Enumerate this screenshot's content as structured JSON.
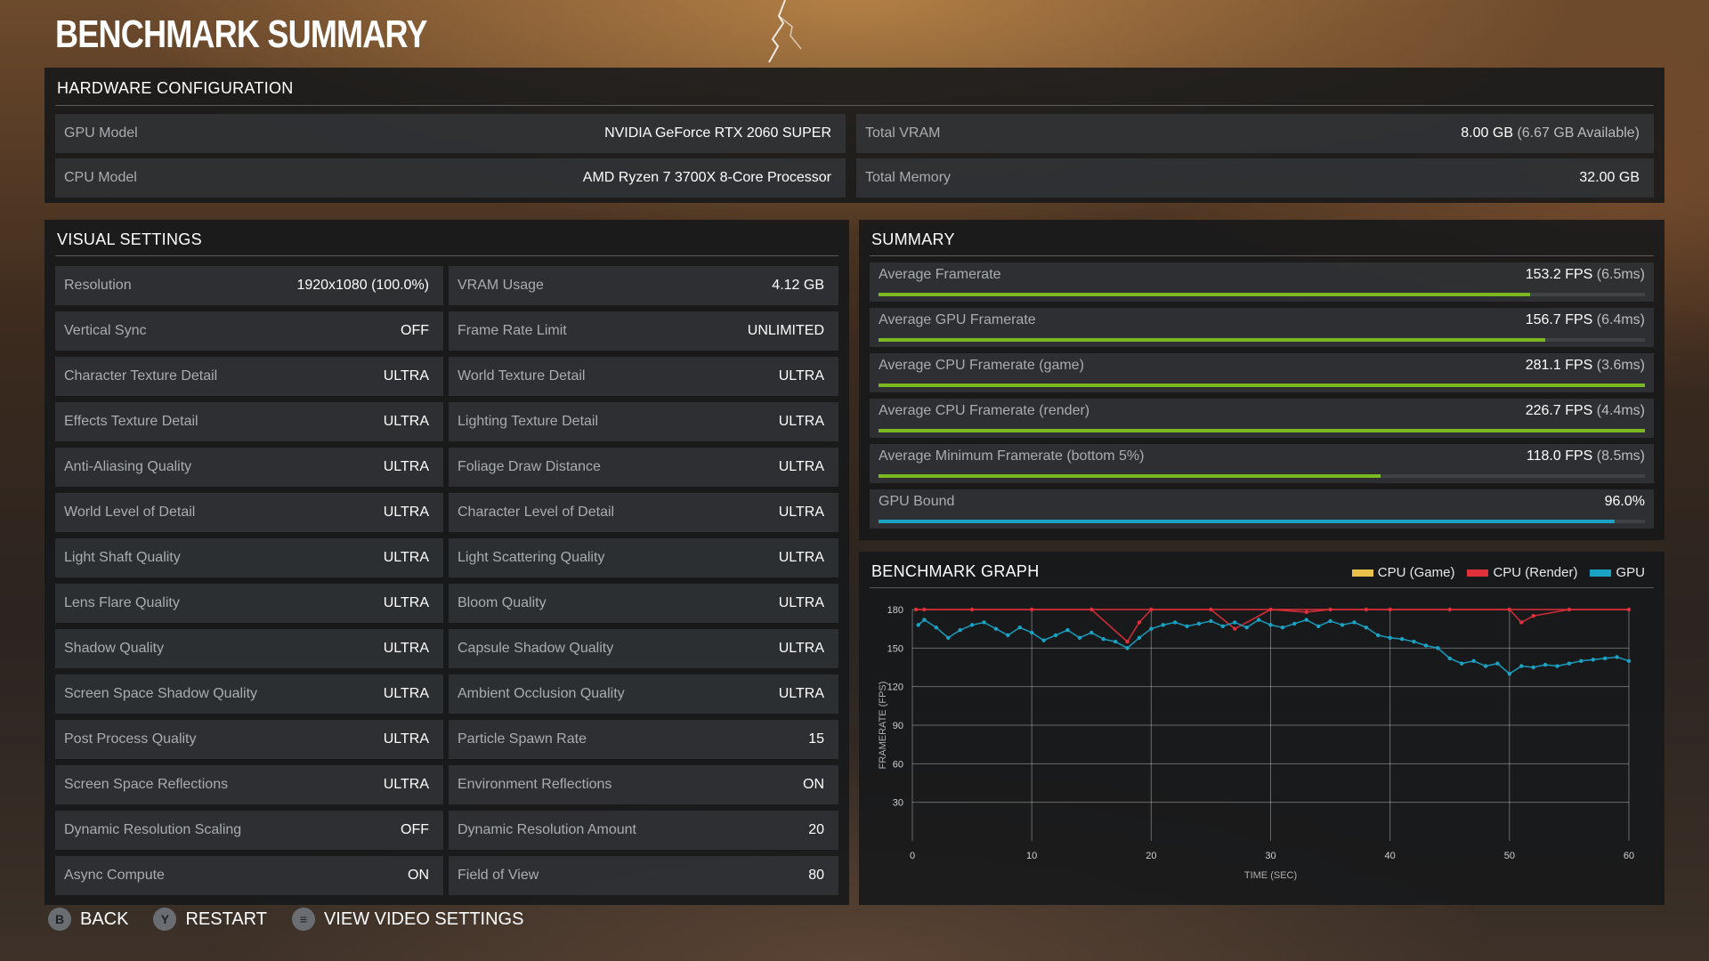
{
  "title": "BENCHMARK SUMMARY",
  "hardware": {
    "heading": "HARDWARE CONFIGURATION",
    "rows": [
      {
        "label": "GPU Model",
        "value": "NVIDIA GeForce RTX 2060 SUPER"
      },
      {
        "label": "Total VRAM",
        "value": "8.00 GB",
        "sub": "(6.67 GB Available)"
      },
      {
        "label": "CPU Model",
        "value": "AMD Ryzen 7 3700X 8-Core Processor"
      },
      {
        "label": "Total Memory",
        "value": "32.00 GB"
      }
    ]
  },
  "visual_settings": {
    "heading": "VISUAL SETTINGS",
    "left": [
      {
        "label": "Resolution",
        "value": "1920x1080 (100.0%)"
      },
      {
        "label": "Vertical Sync",
        "value": "OFF"
      },
      {
        "label": "Character Texture Detail",
        "value": "ULTRA"
      },
      {
        "label": "Effects Texture Detail",
        "value": "ULTRA"
      },
      {
        "label": "Anti-Aliasing Quality",
        "value": "ULTRA"
      },
      {
        "label": "World Level of Detail",
        "value": "ULTRA"
      },
      {
        "label": "Light Shaft Quality",
        "value": "ULTRA"
      },
      {
        "label": "Lens Flare Quality",
        "value": "ULTRA"
      },
      {
        "label": "Shadow Quality",
        "value": "ULTRA"
      },
      {
        "label": "Screen Space Shadow Quality",
        "value": "ULTRA"
      },
      {
        "label": "Post Process Quality",
        "value": "ULTRA"
      },
      {
        "label": "Screen Space Reflections",
        "value": "ULTRA"
      },
      {
        "label": "Dynamic Resolution Scaling",
        "value": "OFF"
      },
      {
        "label": "Async Compute",
        "value": "ON"
      }
    ],
    "right": [
      {
        "label": "VRAM Usage",
        "value": "4.12 GB"
      },
      {
        "label": "Frame Rate Limit",
        "value": "UNLIMITED"
      },
      {
        "label": "World Texture Detail",
        "value": "ULTRA"
      },
      {
        "label": "Lighting Texture Detail",
        "value": "ULTRA"
      },
      {
        "label": "Foliage Draw Distance",
        "value": "ULTRA"
      },
      {
        "label": "Character Level of Detail",
        "value": "ULTRA"
      },
      {
        "label": "Light Scattering Quality",
        "value": "ULTRA"
      },
      {
        "label": "Bloom Quality",
        "value": "ULTRA"
      },
      {
        "label": "Capsule Shadow Quality",
        "value": "ULTRA"
      },
      {
        "label": "Ambient Occlusion Quality",
        "value": "ULTRA"
      },
      {
        "label": "Particle Spawn Rate",
        "value": "15"
      },
      {
        "label": "Environment Reflections",
        "value": "ON"
      },
      {
        "label": "Dynamic Resolution Amount",
        "value": "20"
      },
      {
        "label": "Field of View",
        "value": "80"
      }
    ]
  },
  "summary": {
    "heading": "SUMMARY",
    "rows": [
      {
        "label": "Average Framerate",
        "value": "153.2 FPS",
        "sub": "(6.5ms)",
        "bar_fraction": 0.85,
        "bar_color": "#7cb820"
      },
      {
        "label": "Average GPU Framerate",
        "value": "156.7 FPS",
        "sub": "(6.4ms)",
        "bar_fraction": 0.87,
        "bar_color": "#7cb820"
      },
      {
        "label": "Average CPU Framerate (game)",
        "value": "281.1 FPS",
        "sub": "(3.6ms)",
        "bar_fraction": 1.0,
        "bar_color": "#7cb820"
      },
      {
        "label": "Average CPU Framerate (render)",
        "value": "226.7 FPS",
        "sub": "(4.4ms)",
        "bar_fraction": 1.0,
        "bar_color": "#7cb820"
      },
      {
        "label": "Average Minimum Framerate (bottom 5%)",
        "value": "118.0 FPS",
        "sub": "(8.5ms)",
        "bar_fraction": 0.655,
        "bar_color": "#7cb820"
      },
      {
        "label": "GPU Bound",
        "value": "96.0%",
        "sub": "",
        "bar_fraction": 0.96,
        "bar_color": "#1aa3c4"
      }
    ]
  },
  "graph": {
    "heading": "BENCHMARK GRAPH",
    "legend": [
      {
        "name": "CPU (Game)",
        "color": "#e8c04a"
      },
      {
        "name": "CPU (Render)",
        "color": "#e0303a"
      },
      {
        "name": "GPU",
        "color": "#1aa3c4"
      }
    ]
  },
  "chart_data": {
    "type": "scatter",
    "xlabel": "TIME (SEC)",
    "ylabel": "FRAMERATE (FPS)",
    "xlim": [
      0,
      60
    ],
    "ylim": [
      0,
      180
    ],
    "xticks": [
      0,
      10,
      20,
      30,
      40,
      50,
      60
    ],
    "yticks": [
      30,
      60,
      90,
      120,
      150,
      180
    ],
    "grid": true,
    "series": [
      {
        "name": "CPU (Render)",
        "color": "#e0303a",
        "x": [
          0.3,
          1,
          5,
          10,
          15,
          18,
          19,
          20,
          25,
          27,
          30,
          33,
          35,
          38,
          40,
          45,
          50,
          51,
          52,
          55,
          60
        ],
        "y": [
          180,
          180,
          180,
          180,
          180,
          155,
          170,
          180,
          180,
          165,
          180,
          178,
          180,
          180,
          180,
          180,
          180,
          170,
          175,
          180,
          180
        ]
      },
      {
        "name": "GPU",
        "color": "#1aa3c4",
        "x": [
          0.5,
          1,
          2,
          3,
          4,
          5,
          6,
          7,
          8,
          9,
          10,
          11,
          12,
          13,
          14,
          15,
          16,
          17,
          18,
          19,
          20,
          21,
          22,
          23,
          24,
          25,
          26,
          27,
          28,
          29,
          30,
          31,
          32,
          33,
          34,
          35,
          36,
          37,
          38,
          39,
          40,
          41,
          42,
          43,
          44,
          45,
          46,
          47,
          48,
          49,
          50,
          51,
          52,
          53,
          54,
          55,
          56,
          57,
          58,
          59,
          60
        ],
        "y": [
          168,
          172,
          166,
          158,
          164,
          168,
          170,
          165,
          160,
          166,
          162,
          156,
          160,
          164,
          158,
          162,
          157,
          155,
          150,
          158,
          165,
          168,
          170,
          167,
          169,
          171,
          167,
          170,
          166,
          172,
          168,
          166,
          169,
          172,
          167,
          171,
          168,
          170,
          166,
          160,
          158,
          157,
          155,
          152,
          150,
          142,
          138,
          140,
          136,
          138,
          130,
          136,
          135,
          137,
          136,
          138,
          140,
          141,
          142,
          143,
          140
        ]
      }
    ]
  },
  "footer": [
    {
      "glyph": "B",
      "label": "BACK"
    },
    {
      "glyph": "Y",
      "label": "RESTART"
    },
    {
      "glyph": "≡",
      "label": "VIEW VIDEO SETTINGS"
    }
  ]
}
